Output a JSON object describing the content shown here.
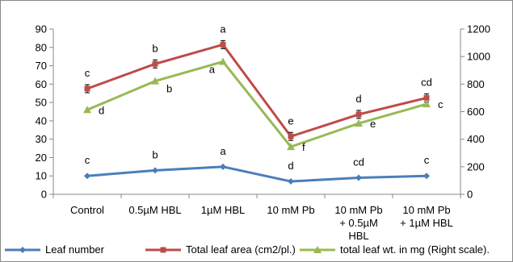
{
  "chart_data": {
    "type": "line",
    "categories": [
      [
        "Control"
      ],
      [
        "0.5µM HBL"
      ],
      [
        "1µM HBL"
      ],
      [
        "10 mM Pb"
      ],
      [
        "10 mM Pb",
        "+ 0.5µM",
        "HBL"
      ],
      [
        "10 mM Pb",
        "+ 1µM HBL"
      ]
    ],
    "y_left": {
      "min": 0,
      "max": 90,
      "step": 10,
      "ticks": [
        "0",
        "10",
        "20",
        "30",
        "40",
        "50",
        "60",
        "70",
        "80",
        "90"
      ]
    },
    "y_right": {
      "min": 0,
      "max": 1200,
      "step": 200,
      "ticks": [
        "0",
        "200",
        "400",
        "600",
        "800",
        "1000",
        "1200"
      ]
    },
    "grid": false,
    "legend_position": "bottom",
    "series": [
      {
        "name": "Leaf number",
        "axis": "left",
        "color": "#4a7ebb",
        "marker": "diamond",
        "values": [
          10,
          13,
          15,
          7,
          9,
          10
        ],
        "labels": [
          "c",
          "b",
          "a",
          "d",
          "cd",
          "c"
        ]
      },
      {
        "name": "Total leaf area (cm2/pl.)",
        "axis": "left",
        "color": "#be4b48",
        "marker": "square",
        "error_bars": true,
        "values": [
          57.5,
          71,
          81.5,
          31.5,
          43.5,
          52.5
        ],
        "labels": [
          "c",
          "b",
          "a",
          "e",
          "d",
          "cd"
        ]
      },
      {
        "name": "total leaf wt. in mg (Right scale).",
        "axis": "right",
        "color": "#98b954",
        "marker": "triangle",
        "values": [
          613,
          822,
          963,
          345,
          515,
          655
        ],
        "labels": [
          "d",
          "b",
          "a",
          "f",
          "e",
          "c"
        ]
      }
    ]
  }
}
